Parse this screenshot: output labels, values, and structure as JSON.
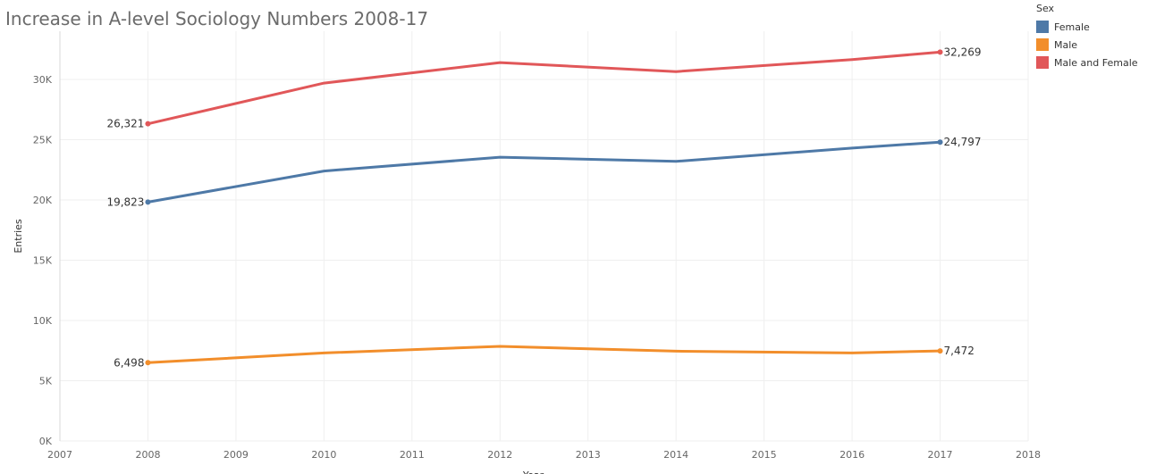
{
  "chart_data": {
    "type": "line",
    "title": "Increase in A-level Sociology Numbers 2008-17",
    "xlabel": "Year",
    "ylabel": "Entries",
    "xlim": [
      2007,
      2018
    ],
    "ylim": [
      0,
      34000
    ],
    "x_ticks": [
      "2007",
      "2008",
      "2009",
      "2010",
      "2011",
      "2012",
      "2013",
      "2014",
      "2015",
      "2016",
      "2017",
      "2018"
    ],
    "y_ticks": [
      "0K",
      "5K",
      "10K",
      "15K",
      "20K",
      "25K",
      "30K"
    ],
    "grid": true,
    "legend_title": "Sex",
    "legend_position": "top-right",
    "x": [
      2008,
      2010,
      2012,
      2014,
      2016,
      2017
    ],
    "series": [
      {
        "name": "Female",
        "color": "#4e79a7",
        "values": [
          19823,
          22400,
          23550,
          23200,
          24300,
          24797
        ],
        "labels": [
          {
            "x": 2008,
            "text": "19,823",
            "side": "left"
          },
          {
            "x": 2017,
            "text": "24,797",
            "side": "right"
          }
        ]
      },
      {
        "name": "Male",
        "color": "#f28e2b",
        "values": [
          6498,
          7300,
          7850,
          7450,
          7300,
          7472
        ],
        "labels": [
          {
            "x": 2008,
            "text": "6,498",
            "side": "left"
          },
          {
            "x": 2017,
            "text": "7,472",
            "side": "right"
          }
        ]
      },
      {
        "name": "Male and Female",
        "color": "#e15759",
        "values": [
          26321,
          29700,
          31400,
          30650,
          31650,
          32269
        ],
        "labels": [
          {
            "x": 2008,
            "text": "26,321",
            "side": "left"
          },
          {
            "x": 2017,
            "text": "32,269",
            "side": "right"
          }
        ]
      }
    ]
  }
}
